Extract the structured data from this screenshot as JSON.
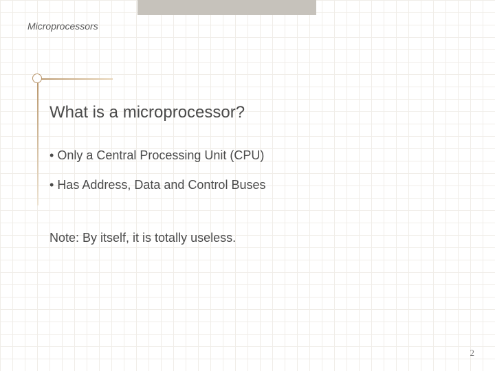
{
  "header": {
    "label": "Microprocessors"
  },
  "slide": {
    "title": "What is a microprocessor?",
    "bullets": [
      "Only a Central Processing Unit (CPU)",
      "Has Address, Data and Control Buses"
    ],
    "note": "Note: By itself, it is totally useless.",
    "page_number": "2"
  },
  "style": {
    "background_color": "#ffffff",
    "grid_color": "#f0ede8",
    "grid_spacing": 18,
    "top_bar_color": "#c6c2bb",
    "accent_color": "#b8956a",
    "text_color": "#4a4a4a",
    "header_fontsize": 14,
    "title_fontsize": 24,
    "body_fontsize": 18,
    "page_num_fontsize": 13,
    "font_family": "Verdana"
  }
}
